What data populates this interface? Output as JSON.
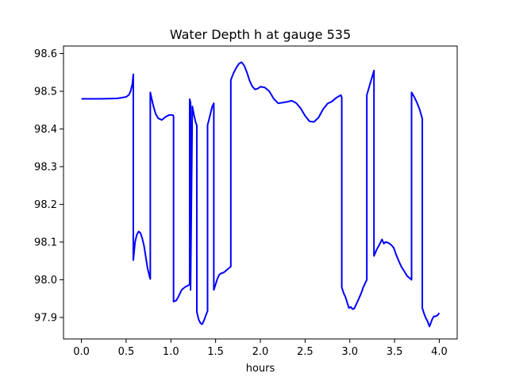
{
  "chart_data": {
    "type": "line",
    "title": "Water Depth h at gauge 535",
    "xlabel": "hours",
    "ylabel": "",
    "xlim": [
      -0.2,
      4.2
    ],
    "ylim": [
      97.843,
      98.62
    ],
    "xticks": [
      0.0,
      0.5,
      1.0,
      1.5,
      2.0,
      2.5,
      3.0,
      3.5,
      4.0
    ],
    "xtick_labels": [
      "0.0",
      "0.5",
      "1.0",
      "1.5",
      "2.0",
      "2.5",
      "3.0",
      "3.5",
      "4.0"
    ],
    "yticks": [
      97.9,
      98.0,
      98.1,
      98.2,
      98.3,
      98.4,
      98.5,
      98.6
    ],
    "ytick_labels": [
      "97.9",
      "98.0",
      "98.1",
      "98.2",
      "98.3",
      "98.4",
      "98.5",
      "98.6"
    ],
    "grid": false,
    "series": [
      {
        "color": "#0000ff",
        "x": [
          0.0,
          0.2,
          0.4,
          0.5,
          0.53,
          0.55,
          0.57,
          0.58,
          0.58,
          0.6,
          0.62,
          0.64,
          0.66,
          0.68,
          0.7,
          0.72,
          0.74,
          0.76,
          0.77,
          0.77,
          0.8,
          0.83,
          0.86,
          0.9,
          0.94,
          0.98,
          1.02,
          1.03,
          1.03,
          1.06,
          1.08,
          1.1,
          1.12,
          1.14,
          1.16,
          1.18,
          1.2,
          1.21,
          1.21,
          1.22,
          1.22,
          1.24,
          1.26,
          1.28,
          1.29,
          1.29,
          1.31,
          1.33,
          1.35,
          1.37,
          1.39,
          1.41,
          1.41,
          1.44,
          1.46,
          1.48,
          1.48,
          1.5,
          1.52,
          1.54,
          1.56,
          1.58,
          1.6,
          1.62,
          1.64,
          1.66,
          1.67,
          1.67,
          1.7,
          1.73,
          1.76,
          1.79,
          1.82,
          1.85,
          1.88,
          1.91,
          1.94,
          1.97,
          2.0,
          2.05,
          2.1,
          2.15,
          2.2,
          2.25,
          2.3,
          2.35,
          2.4,
          2.45,
          2.5,
          2.55,
          2.6,
          2.65,
          2.7,
          2.75,
          2.8,
          2.85,
          2.9,
          2.91,
          2.91,
          2.93,
          2.95,
          2.97,
          2.99,
          3.01,
          3.03,
          3.05,
          3.07,
          3.09,
          3.11,
          3.13,
          3.15,
          3.17,
          3.19,
          3.19,
          3.27,
          3.27,
          3.3,
          3.33,
          3.36,
          3.38,
          3.4,
          3.43,
          3.46,
          3.49,
          3.52,
          3.55,
          3.58,
          3.61,
          3.64,
          3.67,
          3.69,
          3.69,
          3.72,
          3.75,
          3.78,
          3.81,
          3.81,
          3.83,
          3.85,
          3.87,
          3.89,
          3.9,
          3.92,
          3.94,
          3.96,
          3.98,
          4.0
        ],
        "y": [
          98.48,
          98.48,
          98.481,
          98.485,
          98.49,
          98.5,
          98.52,
          98.545,
          98.052,
          98.1,
          98.12,
          98.128,
          98.124,
          98.11,
          98.09,
          98.06,
          98.03,
          98.01,
          98.002,
          98.497,
          98.465,
          98.44,
          98.428,
          98.424,
          98.432,
          98.437,
          98.437,
          98.434,
          97.942,
          97.945,
          97.953,
          97.963,
          97.973,
          97.977,
          97.981,
          97.983,
          97.986,
          97.988,
          98.479,
          98.47,
          97.973,
          98.46,
          98.435,
          98.415,
          98.41,
          97.915,
          97.895,
          97.885,
          97.882,
          97.892,
          97.905,
          97.917,
          98.41,
          98.438,
          98.458,
          98.468,
          97.973,
          97.988,
          98.003,
          98.013,
          98.017,
          98.018,
          98.021,
          98.025,
          98.029,
          98.033,
          98.035,
          98.53,
          98.548,
          98.562,
          98.573,
          98.577,
          98.568,
          98.55,
          98.528,
          98.513,
          98.505,
          98.507,
          98.512,
          98.51,
          98.5,
          98.48,
          98.468,
          98.47,
          98.472,
          98.475,
          98.469,
          98.455,
          98.435,
          98.42,
          98.419,
          98.43,
          98.452,
          98.467,
          98.473,
          98.483,
          98.49,
          98.483,
          97.98,
          97.965,
          97.955,
          97.94,
          97.925,
          97.928,
          97.922,
          97.924,
          97.934,
          97.944,
          97.955,
          97.966,
          97.98,
          97.99,
          98.0,
          98.49,
          98.555,
          98.063,
          98.08,
          98.093,
          98.107,
          98.096,
          98.1,
          98.098,
          98.093,
          98.085,
          98.065,
          98.048,
          98.033,
          98.022,
          98.01,
          98.004,
          98.0,
          98.497,
          98.485,
          98.47,
          98.452,
          98.427,
          97.925,
          97.91,
          97.898,
          97.889,
          97.876,
          97.882,
          97.895,
          97.903,
          97.903,
          97.906,
          97.912
        ]
      }
    ]
  }
}
